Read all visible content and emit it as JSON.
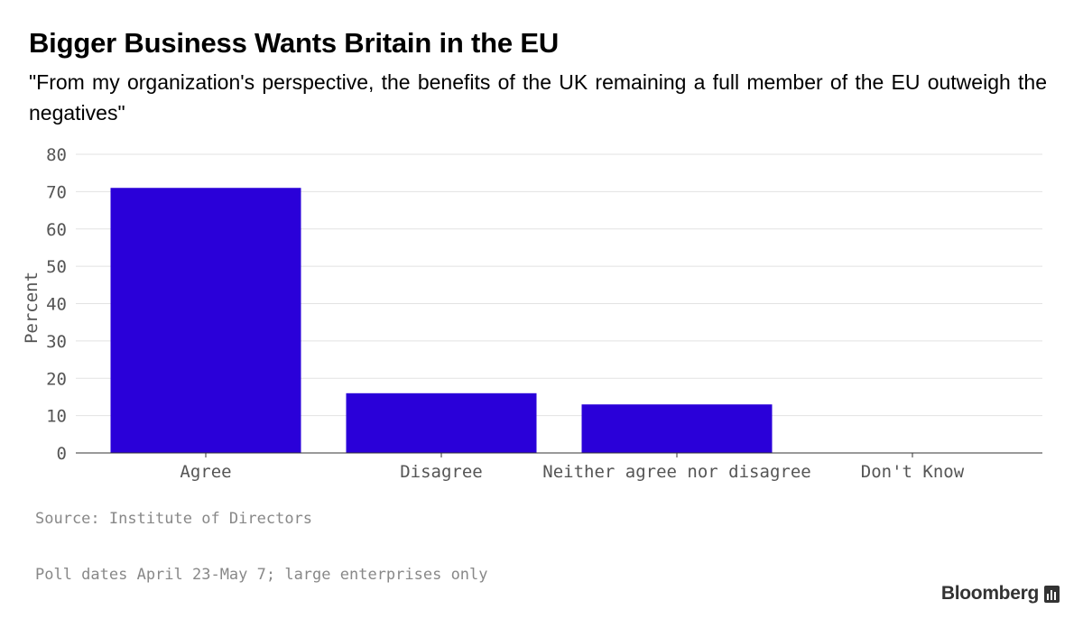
{
  "title": "Bigger Business Wants Britain in the EU",
  "subtitle": "\"From my organization's perspective, the benefits of the UK remaining a full member of the EU outweigh the negatives\"",
  "source": "Source: Institute of Directors",
  "note": "Poll dates April 23-May 7; large enterprises only",
  "brand": {
    "name": "Bloomberg",
    "icon": "bloomberg-chart-icon"
  },
  "chart_data": {
    "type": "bar",
    "categories": [
      "Agree",
      "Disagree",
      "Neither agree nor disagree",
      "Don't Know"
    ],
    "values": [
      71,
      16,
      13,
      0
    ],
    "ylabel": "Percent",
    "xlabel": "",
    "ylim": [
      0,
      80
    ],
    "yticks": [
      0,
      10,
      20,
      30,
      40,
      50,
      60,
      70,
      80
    ],
    "bar_color": "#2a00d9",
    "grid": true,
    "legend": "none"
  }
}
